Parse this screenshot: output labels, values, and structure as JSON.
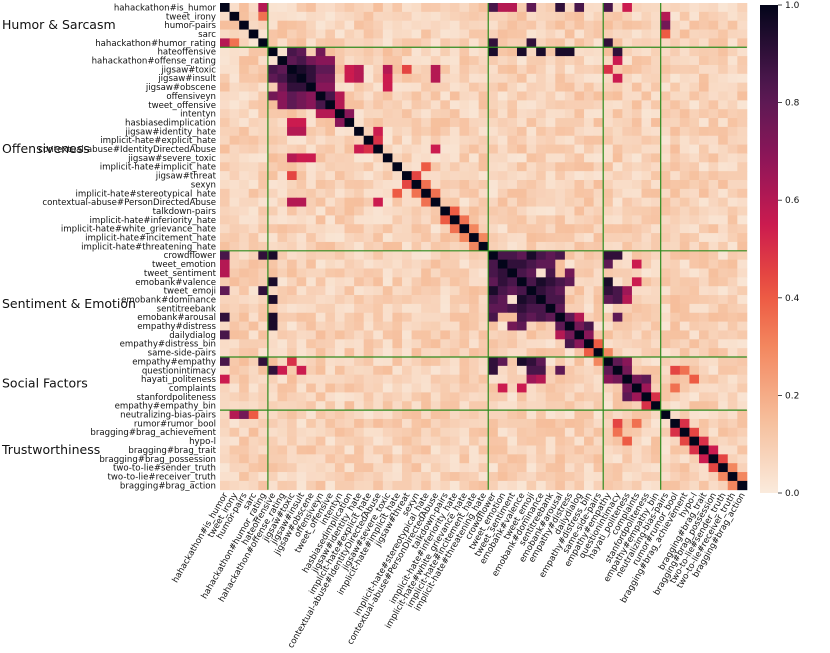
{
  "chart_data": {
    "type": "heatmap",
    "title": "",
    "labels": [
      "hahackathon#is_humor",
      "tweet_irony",
      "humor-pairs",
      "sarc",
      "hahackathon#humor_rating",
      "hateoffensive",
      "hahackathon#offense_rating",
      "jigsaw#toxic",
      "jigsaw#insult",
      "jigsaw#obscene",
      "offensiveyn",
      "tweet_offensive",
      "intentyn",
      "hasbiasedimplication",
      "jigsaw#identity_hate",
      "implicit-hate#explicit_hate",
      "contextual-abuse#IdentityDirectedAbuse",
      "jigsaw#severe_toxic",
      "implicit-hate#implicit_hate",
      "jigsaw#threat",
      "sexyn",
      "implicit-hate#stereotypical_hate",
      "contextual-abuse#PersonDirectedAbuse",
      "talkdown-pairs",
      "implicit-hate#inferiority_hate",
      "implicit-hate#white_grievance_hate",
      "implicit-hate#incitement_hate",
      "implicit-hate#threatening_hate",
      "crowdflower",
      "tweet_emotion",
      "tweet_sentiment",
      "emobank#valence",
      "tweet_emoji",
      "emobank#dominance",
      "sentitreebank",
      "emobank#arousal",
      "empathy#distress",
      "dailydialog",
      "empathy#distress_bin",
      "same-side-pairs",
      "empathy#empathy",
      "questionintimacy",
      "hayati_politeness",
      "complaints",
      "stanfordpoliteness",
      "empathy#empathy_bin",
      "neutralizing-bias-pairs",
      "rumor#rumor_bool",
      "bragging#brag_achievement",
      "hypo-l",
      "bragging#brag_trait",
      "bragging#brag_possession",
      "two-to-lie#sender_truth",
      "two-to-lie#receiver_truth",
      "bragging#brag_action"
    ],
    "groups": [
      {
        "name": "Humor & Sarcasm",
        "start": 0,
        "end": 4
      },
      {
        "name": "Offensiveness",
        "start": 5,
        "end": 27
      },
      {
        "name": "Sentiment & Emotion",
        "start": 28,
        "end": 39
      },
      {
        "name": "Social Factors",
        "start": 40,
        "end": 45
      },
      {
        "name": "Trustworthiness",
        "start": 46,
        "end": 54
      }
    ],
    "color_range": [
      0.0,
      1.0
    ],
    "colorbar_ticks": [
      0.0,
      0.2,
      0.4,
      0.6,
      0.8,
      1.0
    ],
    "colorbar_tick_labels": [
      "0.0",
      "0.2",
      "0.4",
      "0.6",
      "0.8",
      "1.0"
    ],
    "colormap": "rocket_r",
    "matrix_note": "symmetric correlation matrix, diagonal = 1.0",
    "strong_pairs": [
      [
        5,
        7,
        0.85
      ],
      [
        5,
        8,
        0.8
      ],
      [
        5,
        10,
        0.75
      ],
      [
        6,
        7,
        0.8
      ],
      [
        6,
        8,
        0.85
      ],
      [
        6,
        9,
        0.75
      ],
      [
        6,
        10,
        0.7
      ],
      [
        6,
        11,
        0.7
      ],
      [
        7,
        8,
        0.95
      ],
      [
        7,
        9,
        0.9
      ],
      [
        7,
        10,
        0.8
      ],
      [
        7,
        11,
        0.8
      ],
      [
        8,
        9,
        0.9
      ],
      [
        8,
        10,
        0.75
      ],
      [
        8,
        11,
        0.75
      ],
      [
        9,
        10,
        0.7
      ],
      [
        9,
        11,
        0.7
      ],
      [
        10,
        11,
        0.85
      ],
      [
        10,
        12,
        0.6
      ],
      [
        11,
        12,
        0.6
      ],
      [
        12,
        13,
        0.7
      ],
      [
        7,
        13,
        0.55
      ],
      [
        8,
        13,
        0.55
      ],
      [
        7,
        14,
        0.6
      ],
      [
        8,
        14,
        0.6
      ],
      [
        7,
        17,
        0.6
      ],
      [
        8,
        17,
        0.55
      ],
      [
        9,
        17,
        0.55
      ],
      [
        7,
        19,
        0.45
      ],
      [
        14,
        16,
        0.55
      ],
      [
        15,
        16,
        0.5
      ],
      [
        16,
        22,
        0.55
      ],
      [
        7,
        22,
        0.6
      ],
      [
        8,
        22,
        0.6
      ],
      [
        18,
        21,
        0.4
      ],
      [
        4,
        0,
        0.6
      ],
      [
        4,
        1,
        0.35
      ],
      [
        0,
        28,
        0.85
      ],
      [
        0,
        29,
        0.6
      ],
      [
        0,
        30,
        0.6
      ],
      [
        0,
        32,
        0.8
      ],
      [
        0,
        35,
        0.9
      ],
      [
        0,
        37,
        0.85
      ],
      [
        0,
        40,
        0.85
      ],
      [
        5,
        28,
        0.95
      ],
      [
        5,
        31,
        0.95
      ],
      [
        5,
        33,
        0.95
      ],
      [
        5,
        35,
        0.95
      ],
      [
        5,
        36,
        0.95
      ],
      [
        5,
        41,
        0.9
      ],
      [
        4,
        28,
        0.9
      ],
      [
        4,
        32,
        0.9
      ],
      [
        4,
        40,
        0.9
      ],
      [
        28,
        29,
        0.85
      ],
      [
        28,
        30,
        0.85
      ],
      [
        28,
        31,
        0.8
      ],
      [
        28,
        32,
        0.95
      ],
      [
        28,
        33,
        0.85
      ],
      [
        28,
        34,
        0.8
      ],
      [
        28,
        35,
        0.85
      ],
      [
        29,
        30,
        0.9
      ],
      [
        29,
        31,
        0.9
      ],
      [
        29,
        32,
        0.85
      ],
      [
        29,
        33,
        0.8
      ],
      [
        29,
        34,
        0.8
      ],
      [
        30,
        31,
        0.85
      ],
      [
        30,
        32,
        0.8
      ],
      [
        30,
        34,
        0.85
      ],
      [
        31,
        32,
        0.85
      ],
      [
        31,
        33,
        0.95
      ],
      [
        31,
        34,
        0.9
      ],
      [
        31,
        35,
        0.85
      ],
      [
        32,
        33,
        0.9
      ],
      [
        32,
        34,
        0.85
      ],
      [
        32,
        35,
        0.8
      ],
      [
        33,
        34,
        0.85
      ],
      [
        33,
        35,
        0.85
      ],
      [
        34,
        35,
        0.8
      ],
      [
        35,
        36,
        0.8
      ],
      [
        36,
        37,
        0.75
      ],
      [
        36,
        38,
        0.85
      ],
      [
        37,
        38,
        0.7
      ],
      [
        30,
        36,
        0.75
      ],
      [
        31,
        36,
        0.8
      ],
      [
        35,
        37,
        0.6
      ],
      [
        40,
        41,
        0.8
      ],
      [
        40,
        42,
        0.7
      ],
      [
        41,
        42,
        0.75
      ],
      [
        28,
        40,
        0.9
      ],
      [
        29,
        40,
        0.8
      ],
      [
        31,
        40,
        0.95
      ],
      [
        32,
        40,
        0.9
      ],
      [
        33,
        40,
        0.8
      ],
      [
        28,
        41,
        0.9
      ],
      [
        32,
        41,
        0.85
      ],
      [
        33,
        41,
        0.85
      ],
      [
        35,
        41,
        0.8
      ],
      [
        42,
        43,
        0.75
      ],
      [
        42,
        44,
        0.8
      ],
      [
        43,
        44,
        0.65
      ],
      [
        44,
        45,
        0.5
      ],
      [
        32,
        42,
        0.65
      ],
      [
        33,
        42,
        0.6
      ],
      [
        29,
        43,
        0.55
      ],
      [
        31,
        43,
        0.55
      ],
      [
        0,
        42,
        0.55
      ],
      [
        6,
        41,
        0.55
      ],
      [
        7,
        40,
        0.5
      ],
      [
        8,
        41,
        0.55
      ],
      [
        46,
        1,
        0.6
      ],
      [
        46,
        2,
        0.75
      ],
      [
        46,
        3,
        0.4
      ],
      [
        47,
        48,
        0.5
      ],
      [
        48,
        49,
        0.45
      ],
      [
        49,
        50,
        0.5
      ],
      [
        50,
        51,
        0.55
      ],
      [
        51,
        52,
        0.45
      ],
      [
        52,
        53,
        0.3
      ],
      [
        53,
        54,
        0.3
      ],
      [
        47,
        41,
        0.45
      ],
      [
        49,
        42,
        0.4
      ],
      [
        48,
        41,
        0.35
      ],
      [
        47,
        43,
        0.35
      ],
      [
        21,
        22,
        0.35
      ],
      [
        23,
        24,
        0.4
      ],
      [
        24,
        25,
        0.35
      ],
      [
        25,
        26,
        0.3
      ],
      [
        26,
        27,
        0.3
      ],
      [
        19,
        20,
        0.45
      ],
      [
        20,
        21,
        0.35
      ],
      [
        38,
        39,
        0.4
      ],
      [
        39,
        40,
        0.3
      ]
    ]
  }
}
